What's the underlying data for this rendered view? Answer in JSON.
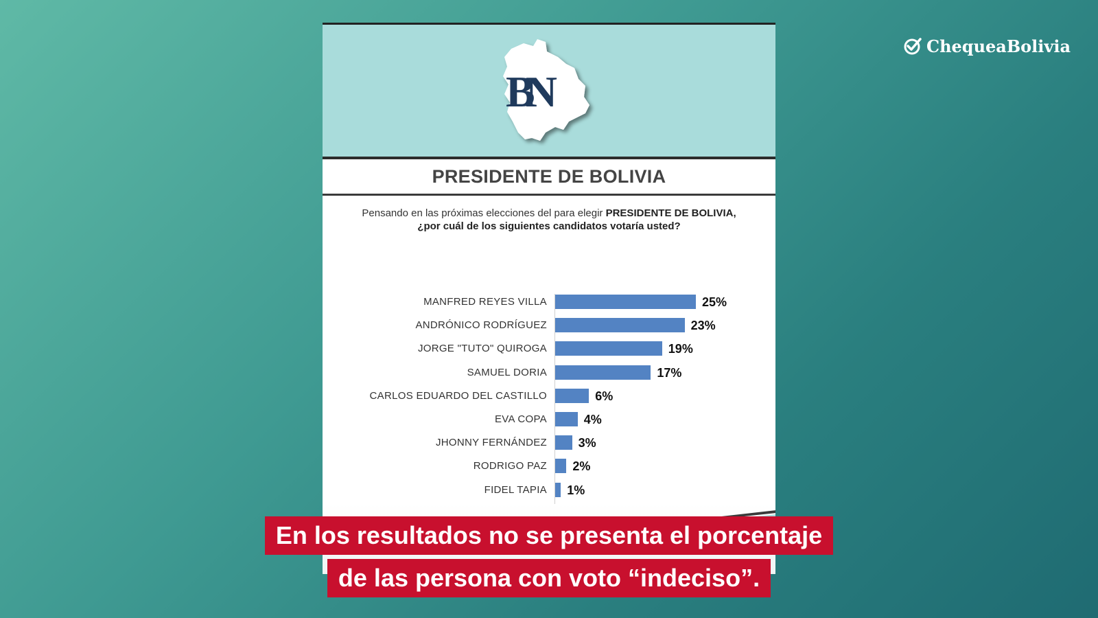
{
  "brand": {
    "name": "ChequeaBolivia",
    "icon": "check-circle-icon"
  },
  "logo": {
    "letters": "BN",
    "icon": "bolivia-map-icon"
  },
  "colors": {
    "bar": "#5383c3",
    "banner": "#a9dcdb",
    "caption_bg": "#c8102e"
  },
  "title": "PRESIDENTE DE BOLIVIA",
  "question": {
    "line1_normal": "Pensando en las próximas elecciones del para elegir ",
    "line1_bold": "PRESIDENTE DE BOLIVIA,",
    "line2": "¿por cuál de los siguientes candidatos votaría usted?"
  },
  "chart_data": {
    "type": "bar",
    "orientation": "horizontal",
    "title": "PRESIDENTE DE BOLIVIA",
    "categories": [
      "MANFRED REYES VILLA",
      "ANDRÓNICO RODRÍGUEZ",
      "JORGE \"TUTO\" QUIROGA",
      "SAMUEL DORIA",
      "CARLOS EDUARDO DEL CASTILLO",
      "EVA COPA",
      "JHONNY FERNÁNDEZ",
      "RODRIGO PAZ",
      "FIDEL TAPIA"
    ],
    "values": [
      25,
      23,
      19,
      17,
      6,
      4,
      3,
      2,
      1
    ],
    "value_labels": [
      "25%",
      "23%",
      "19%",
      "17%",
      "6%",
      "4%",
      "3%",
      "2%",
      "1%"
    ],
    "xlim": [
      0,
      25
    ],
    "grid": false,
    "legend": "none"
  },
  "caption": {
    "line1": "En los resultados no se presenta el porcentaje",
    "line2": "de las persona con voto “indeciso”."
  }
}
